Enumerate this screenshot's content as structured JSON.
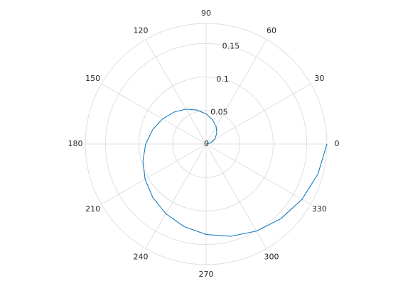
{
  "chart_data": {
    "type": "polar",
    "x": [
      0,
      15,
      30,
      45,
      60,
      75,
      90,
      105,
      120,
      135,
      150,
      165,
      180,
      195,
      210,
      225,
      240,
      255,
      270,
      285,
      300,
      315,
      330,
      345,
      360
    ],
    "values": [
      0,
      0.0075,
      0.015,
      0.0225,
      0.03,
      0.0375,
      0.045,
      0.0525,
      0.06,
      0.0675,
      0.075,
      0.0825,
      0.09,
      0.0975,
      0.105,
      0.1125,
      0.12,
      0.1275,
      0.135,
      0.1425,
      0.15,
      0.1575,
      0.165,
      0.1725,
      0.18
    ],
    "color": "#0072bd",
    "rlim": [
      0,
      0.18
    ],
    "rticks": [
      0,
      0.05,
      0.1,
      0.15
    ],
    "thetaticks": [
      0,
      30,
      60,
      90,
      120,
      150,
      180,
      210,
      240,
      270,
      300,
      330
    ],
    "grid": true
  }
}
